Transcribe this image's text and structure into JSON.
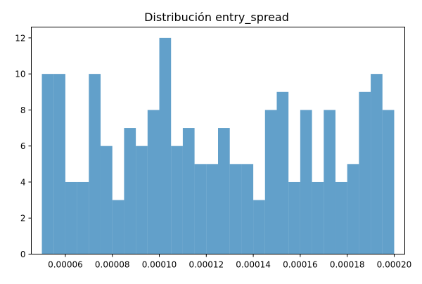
{
  "chart_data": {
    "type": "bar",
    "title": "Distribución entry_spread",
    "xlabel": "",
    "ylabel": "",
    "bin_start": 5e-05,
    "bin_width": 5e-06,
    "values": [
      10,
      10,
      4,
      4,
      10,
      6,
      3,
      7,
      6,
      8,
      12,
      6,
      7,
      5,
      5,
      7,
      5,
      5,
      3,
      8,
      9,
      4,
      8,
      4,
      8,
      4,
      5,
      9,
      10,
      8
    ],
    "xlim": [
      4.55e-05,
      0.0002045
    ],
    "ylim": [
      0,
      12.6
    ],
    "xticks": [
      6e-05,
      8e-05,
      0.0001,
      0.00012,
      0.00014,
      0.00016,
      0.00018,
      0.0002
    ],
    "xtick_labels": [
      "0.00006",
      "0.00008",
      "0.00010",
      "0.00012",
      "0.00014",
      "0.00016",
      "0.00018",
      "0.00020"
    ],
    "yticks": [
      0,
      2,
      4,
      6,
      8,
      10,
      12
    ],
    "ytick_labels": [
      "0",
      "2",
      "4",
      "6",
      "8",
      "10",
      "12"
    ],
    "bar_color": "#1f77b4",
    "bar_opacity": 0.7,
    "grid": false,
    "legend": "none"
  }
}
